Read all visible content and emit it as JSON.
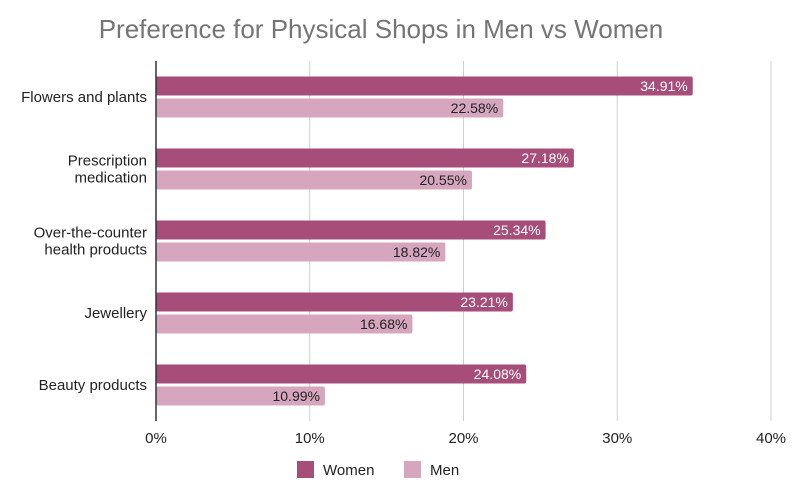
{
  "chart_data": {
    "type": "bar",
    "orientation": "horizontal",
    "title": "Preference for Physical Shops in Men vs Women",
    "categories": [
      [
        "Flowers and plants"
      ],
      [
        "Prescription",
        "medication"
      ],
      [
        "Over-the-counter",
        "health products"
      ],
      [
        "Jewellery"
      ],
      [
        "Beauty products"
      ]
    ],
    "series": [
      {
        "name": "Women",
        "color": "#a64d79",
        "label_color": "#ffffff",
        "values": [
          34.91,
          27.18,
          25.34,
          23.21,
          24.08
        ],
        "labels": [
          "34.91%",
          "27.18%",
          "25.34%",
          "23.21%",
          "24.08%"
        ]
      },
      {
        "name": "Men",
        "color": "#d5a6bd",
        "label_color": "#222222",
        "values": [
          22.58,
          20.55,
          18.82,
          16.68,
          10.99
        ],
        "labels": [
          "22.58%",
          "20.55%",
          "18.82%",
          "16.68%",
          "10.99%"
        ]
      }
    ],
    "xlim": [
      0,
      40
    ],
    "xticks": [
      0,
      10,
      20,
      30,
      40
    ],
    "xtick_labels": [
      "0%",
      "10%",
      "20%",
      "30%",
      "40%"
    ],
    "grid": true,
    "legend_position": "bottom"
  }
}
